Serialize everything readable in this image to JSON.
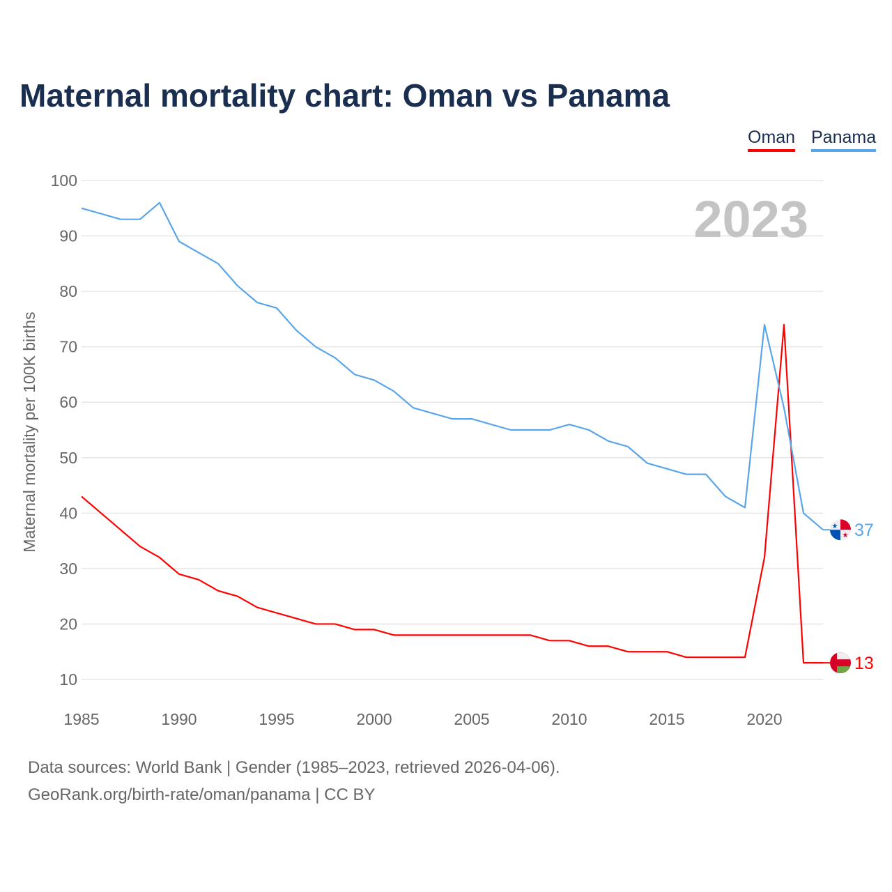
{
  "title": "Maternal mortality chart: Oman vs Panama",
  "footer": {
    "line1": "Data sources: World Bank | Gender (1985–2023, retrieved 2026-04-06).",
    "line2": "GeoRank.org/birth-rate/oman/panama | CC BY"
  },
  "chart_data": {
    "type": "line",
    "title": "Maternal mortality chart: Oman vs Panama",
    "xlabel": "",
    "ylabel": "Maternal mortality per 100K births",
    "xlim": [
      1985,
      2023
    ],
    "ylim": [
      10,
      100
    ],
    "yticks": [
      10,
      20,
      30,
      40,
      50,
      60,
      70,
      80,
      90,
      100
    ],
    "xticks": [
      1985,
      1990,
      1995,
      2000,
      2005,
      2010,
      2015,
      2020
    ],
    "year_watermark": "2023",
    "grid": true,
    "legend_position": "top-right",
    "x": [
      1985,
      1986,
      1987,
      1988,
      1989,
      1990,
      1991,
      1992,
      1993,
      1994,
      1995,
      1996,
      1997,
      1998,
      1999,
      2000,
      2001,
      2002,
      2003,
      2004,
      2005,
      2006,
      2007,
      2008,
      2009,
      2010,
      2011,
      2012,
      2013,
      2014,
      2015,
      2016,
      2017,
      2018,
      2019,
      2020,
      2021,
      2022,
      2023
    ],
    "series": [
      {
        "name": "Oman",
        "color": "#ff0000",
        "end_label": "13",
        "values": [
          43,
          40,
          37,
          34,
          32,
          29,
          28,
          26,
          25,
          23,
          22,
          21,
          20,
          20,
          19,
          19,
          18,
          18,
          18,
          18,
          18,
          18,
          18,
          18,
          17,
          17,
          16,
          16,
          15,
          15,
          15,
          14,
          14,
          14,
          14,
          32,
          74,
          13,
          13
        ]
      },
      {
        "name": "Panama",
        "color": "#5aa5ea",
        "end_label": "37",
        "values": [
          95,
          94,
          93,
          93,
          96,
          89,
          87,
          85,
          81,
          78,
          77,
          73,
          70,
          68,
          65,
          64,
          62,
          59,
          58,
          57,
          57,
          56,
          55,
          55,
          55,
          56,
          55,
          53,
          52,
          49,
          48,
          47,
          47,
          43,
          41,
          74,
          59,
          40,
          37
        ]
      }
    ]
  }
}
